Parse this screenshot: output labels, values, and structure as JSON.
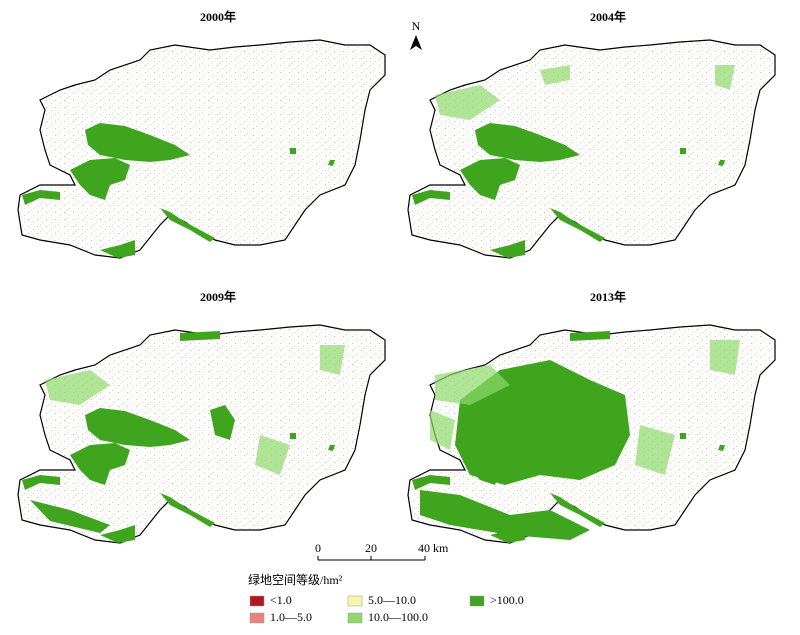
{
  "panels": [
    {
      "title": "2000年"
    },
    {
      "title": "2004年"
    },
    {
      "title": "2009年"
    },
    {
      "title": "2013年"
    }
  ],
  "north_arrow": "N",
  "scale_bar": {
    "labels": [
      "0",
      "20",
      "40 km"
    ]
  },
  "legend": {
    "title": "绿地空间等级/hm²",
    "items": [
      {
        "label": "<1.0",
        "color": "#b2181b"
      },
      {
        "label": "1.0—5.0",
        "color": "#e8837a"
      },
      {
        "label": "5.0—10.0",
        "color": "#f4f7a8"
      },
      {
        "label": "10.0—100.0",
        "color": "#8fd86a"
      },
      {
        "label": ">100.0",
        "color": "#3fa51e"
      }
    ]
  }
}
